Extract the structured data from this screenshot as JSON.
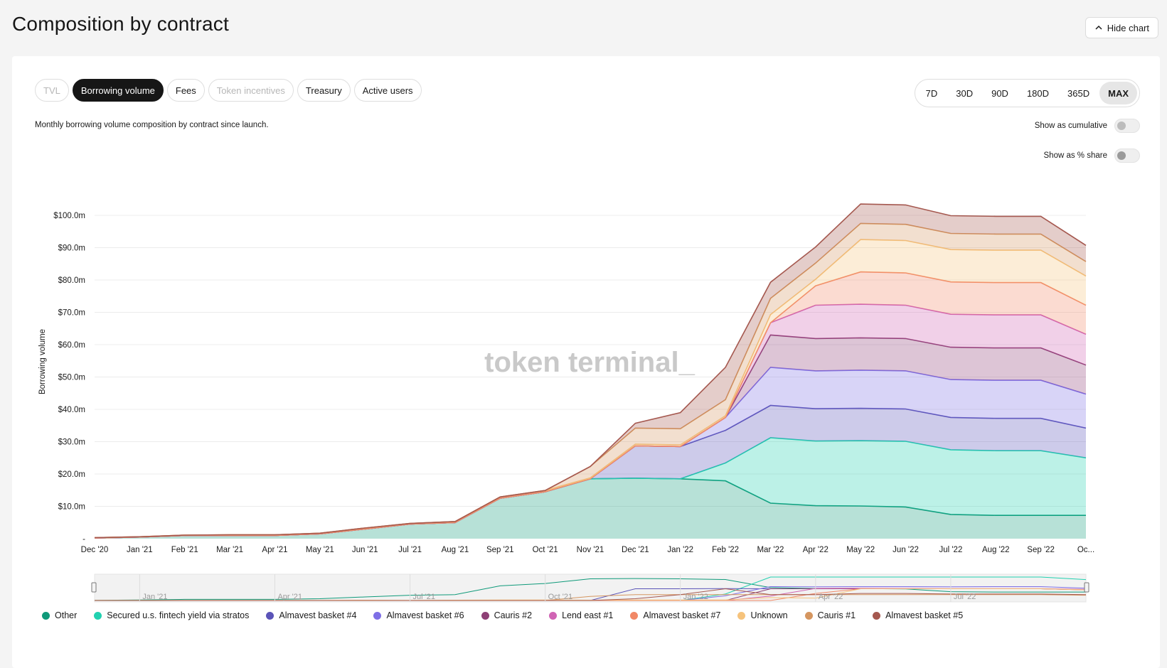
{
  "header": {
    "title": "Composition by contract",
    "hide_chart_label": "Hide chart"
  },
  "tabs": [
    {
      "label": "TVL",
      "state": "disabled"
    },
    {
      "label": "Borrowing volume",
      "state": "active"
    },
    {
      "label": "Fees",
      "state": "normal"
    },
    {
      "label": "Token incentives",
      "state": "disabled"
    },
    {
      "label": "Treasury",
      "state": "normal"
    },
    {
      "label": "Active users",
      "state": "normal"
    }
  ],
  "ranges": [
    {
      "label": "7D",
      "active": false
    },
    {
      "label": "30D",
      "active": false
    },
    {
      "label": "90D",
      "active": false
    },
    {
      "label": "180D",
      "active": false
    },
    {
      "label": "365D",
      "active": false
    },
    {
      "label": "MAX",
      "active": true
    }
  ],
  "description": "Monthly borrowing volume composition by contract since launch.",
  "toggles": {
    "cumulative_label": "Show as cumulative",
    "share_label": "Show as % share",
    "cumulative_on": false,
    "share_on": false
  },
  "watermark": "token terminal_",
  "navigator_labels": [
    "Jan '21",
    "Apr '21",
    "Jul '21",
    "Oct '21",
    "Jan '22",
    "Apr '22",
    "Jul '22"
  ],
  "chart_data": {
    "type": "area",
    "stacked": true,
    "ylabel": "Borrowing volume",
    "ylim": [
      0,
      100
    ],
    "y_unit": "$m",
    "y_ticks": [
      "-",
      "$10.0m",
      "$20.0m",
      "$30.0m",
      "$40.0m",
      "$50.0m",
      "$60.0m",
      "$70.0m",
      "$80.0m",
      "$90.0m",
      "$100.0m"
    ],
    "categories": [
      "Dec '20",
      "Jan '21",
      "Feb '21",
      "Mar '21",
      "Apr '21",
      "May '21",
      "Jun '21",
      "Jul '21",
      "Aug '21",
      "Sep '21",
      "Oct '21",
      "Nov '21",
      "Dec '21",
      "Jan '22",
      "Feb '22",
      "Mar '22",
      "Apr '22",
      "May '22",
      "Jun '22",
      "Jul '22",
      "Aug '22",
      "Sep '22",
      "Oc..."
    ],
    "series": [
      {
        "name": "Other",
        "color": "#0f9a7a",
        "values": [
          0.2,
          0.5,
          1.0,
          1.0,
          1.0,
          1.5,
          3.0,
          4.5,
          5.0,
          12.5,
          14.5,
          18.5,
          18.7,
          18.5,
          17.9,
          11.0,
          10.2,
          10.1,
          9.8,
          7.5,
          7.2,
          7.2,
          7.2
        ]
      },
      {
        "name": "Secured u.s. fintech yield via stratos",
        "color": "#21d1b0",
        "values": [
          0,
          0,
          0,
          0,
          0,
          0,
          0,
          0,
          0,
          0,
          0,
          0,
          0,
          0,
          5.5,
          20.2,
          20.0,
          20.2,
          20.3,
          20.0,
          20.0,
          20.0,
          17.8
        ]
      },
      {
        "name": "Almavest basket #4",
        "color": "#5b54b8",
        "values": [
          0,
          0,
          0,
          0,
          0,
          0,
          0,
          0,
          0,
          0,
          0,
          0,
          10.0,
          10.0,
          10.1,
          10.0,
          10.0,
          10.0,
          10.0,
          10.0,
          10.0,
          10.0,
          9.2
        ]
      },
      {
        "name": "Almavest basket #6",
        "color": "#7e6fe6",
        "values": [
          0,
          0,
          0,
          0,
          0,
          0,
          0,
          0,
          0,
          0,
          0,
          0,
          0,
          0,
          4.0,
          11.8,
          11.7,
          11.8,
          11.8,
          11.7,
          11.8,
          11.8,
          10.5
        ]
      },
      {
        "name": "Cauris #2",
        "color": "#8e4076",
        "values": [
          0,
          0,
          0,
          0,
          0,
          0,
          0,
          0,
          0,
          0,
          0,
          0,
          0,
          0,
          0,
          10.0,
          10.0,
          10.0,
          10.0,
          10.0,
          10.0,
          10.0,
          9.0
        ]
      },
      {
        "name": "Lend east #1",
        "color": "#d064b4",
        "values": [
          0,
          0,
          0,
          0,
          0,
          0,
          0,
          0,
          0,
          0,
          0,
          0,
          0,
          0,
          0,
          3.8,
          10.3,
          10.4,
          10.3,
          10.2,
          10.2,
          10.2,
          9.5
        ]
      },
      {
        "name": "Almavest basket #7",
        "color": "#f18866",
        "values": [
          0,
          0,
          0,
          0,
          0,
          0,
          0,
          0,
          0,
          0,
          0,
          0,
          0,
          0,
          0,
          0,
          6.0,
          10.0,
          10.0,
          10.0,
          10.0,
          10.0,
          9.0
        ]
      },
      {
        "name": "Unknown",
        "color": "#f6c37c",
        "values": [
          0.1,
          0.1,
          0.1,
          0.2,
          0.2,
          0.2,
          0.3,
          0.2,
          0.3,
          0.4,
          0.4,
          0.3,
          0.5,
          0.5,
          0.5,
          2.5,
          2.0,
          10.0,
          10.0,
          10.0,
          10.0,
          10.0,
          9.0
        ]
      },
      {
        "name": "Cauris #1",
        "color": "#d59660",
        "values": [
          0,
          0,
          0,
          0,
          0,
          0,
          0,
          0,
          0,
          0,
          0,
          3.5,
          5.0,
          5.0,
          5.0,
          5.0,
          5.0,
          5.0,
          5.0,
          5.0,
          5.0,
          5.0,
          4.5
        ]
      },
      {
        "name": "Almavest basket #5",
        "color": "#a5584f",
        "values": [
          0,
          0,
          0,
          0,
          0,
          0,
          0,
          0,
          0,
          0,
          0,
          0,
          1.5,
          5.0,
          10.0,
          5.0,
          5.0,
          6.0,
          6.0,
          5.5,
          5.5,
          5.5,
          5.0
        ]
      }
    ]
  }
}
